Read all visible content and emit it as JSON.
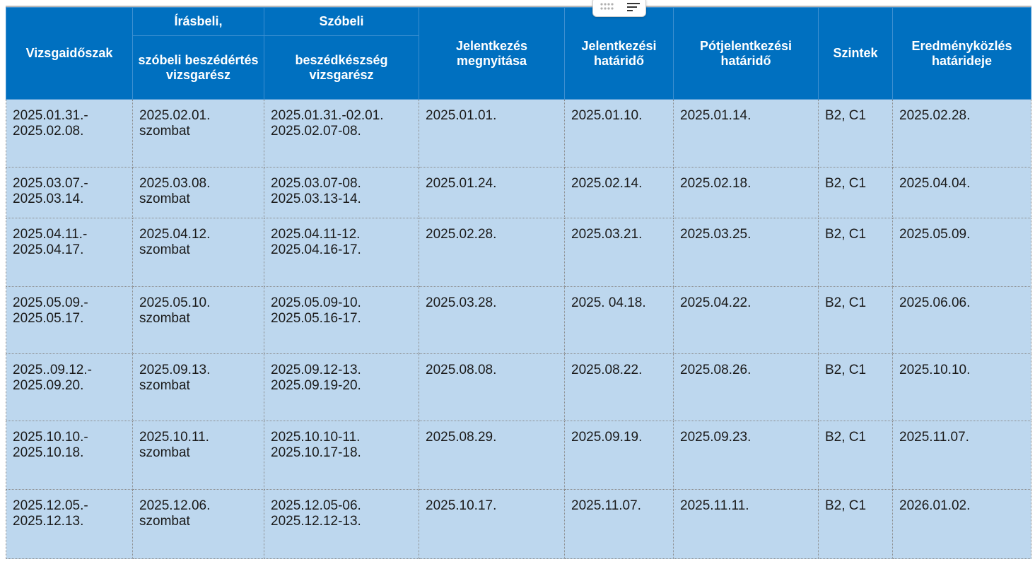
{
  "header": {
    "columns": [
      "Vizsgaidőszak",
      "Írásbeli,",
      "Szóbeli",
      "Jelentkezés megnyitása",
      "Jelentkezési határidő",
      "Pótjelentkezési határidő",
      "Szintek",
      "Eredményközlés határideje"
    ],
    "subcolumns": [
      "szóbeli beszédértés vizsgarész",
      "beszédkészség vizsgarész"
    ]
  },
  "table": {
    "rows": [
      [
        "2025.01.31.-\n2025.02.08.",
        "2025.02.01.\nszombat",
        "2025.01.31.-02.01.\n2025.02.07-08.",
        "2025.01.01.",
        "2025.01.10.",
        "2025.01.14.",
        "B2, C1",
        "2025.02.28."
      ],
      [
        "2025.03.07.-\n2025.03.14.",
        "2025.03.08.\nszombat",
        "2025.03.07-08.\n2025.03.13-14.",
        "2025.01.24.",
        "2025.02.14.",
        "2025.02.18.",
        "B2, C1",
        "2025.04.04."
      ],
      [
        "2025.04.11.-\n2025.04.17.",
        "2025.04.12.\nszombat",
        "2025.04.11-12.\n2025.04.16-17.",
        "2025.02.28.",
        "2025.03.21.",
        "2025.03.25.",
        "B2, C1",
        "2025.05.09."
      ],
      [
        "2025.05.09.-\n2025.05.17.",
        "2025.05.10.\nszombat",
        "2025.05.09-10.\n2025.05.16-17.",
        "2025.03.28.",
        "2025. 04.18.",
        "2025.04.22.",
        "B2, C1",
        "2025.06.06."
      ],
      [
        "2025..09.12.-\n2025.09.20.",
        "2025.09.13.\nszombat",
        "2025.09.12-13.\n2025.09.19-20.",
        "2025.08.08.",
        "2025.08.22.",
        "2025.08.26.",
        "B2, C1",
        "2025.10.10."
      ],
      [
        "2025.10.10.-\n2025.10.18.",
        "2025.10.11.\nszombat",
        "2025.10.10-11.\n2025.10.17-18.",
        "2025.08.29.",
        "2025.09.19.",
        "2025.09.23.",
        "B2, C1",
        "2025.11.07."
      ],
      [
        "2025.12.05.-\n2025.12.13.",
        "2025.12.06.\nszombat",
        "2025.12.05-06.\n2025.12.12-13.",
        "2025.10.17.",
        "2025.11.07.",
        "2025.11.11.",
        "B2, C1",
        "2026.01.02."
      ]
    ]
  }
}
